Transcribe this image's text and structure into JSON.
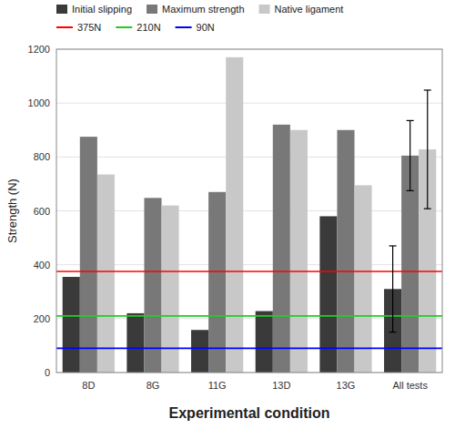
{
  "chart_data": {
    "type": "bar",
    "xlabel": "Experimental condition",
    "ylabel": "Strength (N)",
    "categories": [
      "8D",
      "8G",
      "11G",
      "13D",
      "13G",
      "All tests"
    ],
    "series": [
      {
        "name": "Initial slipping",
        "color": "#3a3a3a",
        "values": [
          355,
          220,
          158,
          228,
          580,
          310
        ],
        "errors": [
          null,
          null,
          null,
          null,
          null,
          160
        ]
      },
      {
        "name": "Maximum strength",
        "color": "#787878",
        "values": [
          875,
          648,
          670,
          920,
          900,
          805
        ],
        "errors": [
          null,
          null,
          null,
          null,
          null,
          130
        ]
      },
      {
        "name": "Native ligament",
        "color": "#c8c8c8",
        "values": [
          735,
          620,
          1170,
          900,
          695,
          828
        ],
        "errors": [
          null,
          null,
          null,
          null,
          null,
          220
        ]
      }
    ],
    "reference_lines": [
      {
        "name": "375N",
        "color": "#ff0000",
        "value": 375
      },
      {
        "name": "210N",
        "color": "#22cc22",
        "value": 210
      },
      {
        "name": "90N",
        "color": "#0000ff",
        "value": 90
      }
    ],
    "ylim": [
      0,
      1200
    ],
    "yticks": [
      0,
      200,
      400,
      600,
      800,
      1000,
      1200
    ],
    "grid": true,
    "legend": "top"
  }
}
